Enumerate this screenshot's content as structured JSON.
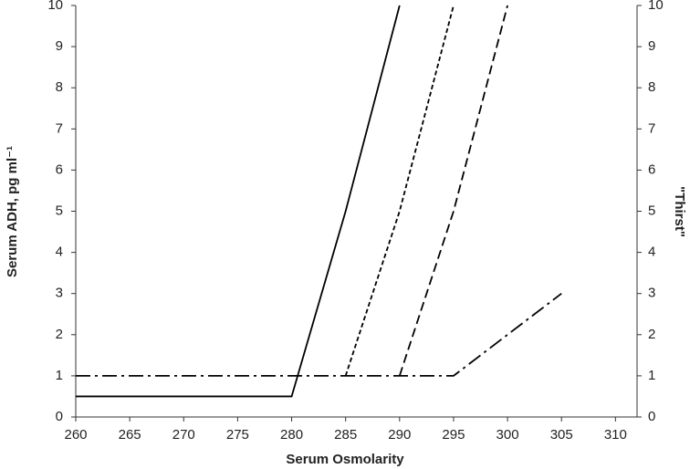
{
  "chart_data": {
    "type": "line",
    "xlabel": "Serum Osmolarity",
    "ylabel": "Serum ADH, pg ml⁻¹",
    "y2label": "\"Thirst\"",
    "xlim": [
      260,
      312
    ],
    "xticks": [
      260,
      265,
      270,
      275,
      280,
      285,
      290,
      295,
      300,
      305,
      310
    ],
    "ylim": [
      0,
      10
    ],
    "yticks": [
      0,
      1,
      2,
      3,
      4,
      5,
      6,
      7,
      8,
      9,
      10
    ],
    "y2lim": [
      0,
      10
    ],
    "y2ticks": [
      0,
      1,
      2,
      3,
      4,
      5,
      6,
      7,
      8,
      9,
      10
    ],
    "series": [
      {
        "color": "#000000",
        "dash": "solid",
        "x": [
          260,
          280,
          285,
          290
        ],
        "values": [
          0.5,
          0.5,
          5,
          10
        ]
      },
      {
        "color": "#000000",
        "dash": "dot",
        "x": [
          285,
          290,
          295
        ],
        "values": [
          1,
          5,
          10
        ]
      },
      {
        "color": "#000000",
        "dash": "dash",
        "x": [
          290,
          295,
          300
        ],
        "values": [
          1,
          5,
          10
        ]
      },
      {
        "color": "#000000",
        "dash": "dashdot",
        "axis": "y2",
        "x": [
          260,
          295,
          305
        ],
        "values": [
          1,
          1,
          3
        ]
      }
    ]
  }
}
